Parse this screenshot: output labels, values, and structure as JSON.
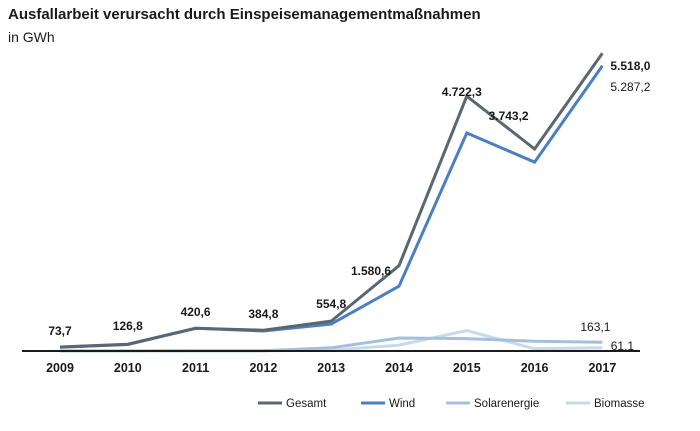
{
  "chart_data": {
    "type": "line",
    "title": "Ausfallarbeit verursacht durch Einspeisemanagementmaßnahmen",
    "subtitle": "in GWh",
    "categories": [
      "2009",
      "2010",
      "2011",
      "2012",
      "2013",
      "2014",
      "2015",
      "2016",
      "2017"
    ],
    "ylim": [
      0,
      5800
    ],
    "series": [
      {
        "name": "Gesamt",
        "color": "#5a6770",
        "values": [
          73.7,
          126.8,
          420.6,
          384.8,
          554.8,
          1580.6,
          4722.3,
          3743.2,
          5518.0
        ]
      },
      {
        "name": "Wind",
        "color": "#4a7fc1",
        "values": [
          70,
          120,
          420,
          370,
          500,
          1200,
          4040,
          3500,
          5287.2
        ]
      },
      {
        "name": "Solarenergie",
        "color": "#a4c0dd",
        "values": [
          1,
          2,
          3,
          5,
          60,
          240,
          230,
          180,
          163.1
        ]
      },
      {
        "name": "Biomasse",
        "color": "#c8d9ec",
        "values": [
          1,
          2,
          4,
          6,
          15,
          110,
          380,
          40,
          61.1
        ]
      }
    ],
    "data_labels": {
      "gesamt": [
        "73,7",
        "126,8",
        "420,6",
        "384,8",
        "554,8",
        "1.580,6",
        "4.722,3",
        "3.743,2",
        "5.518,0"
      ],
      "wind_2017": "5.287,2",
      "solar_2017": "163,1",
      "biomasse_2017": "61,1"
    },
    "legend_position": "bottom-right",
    "grid": false
  }
}
